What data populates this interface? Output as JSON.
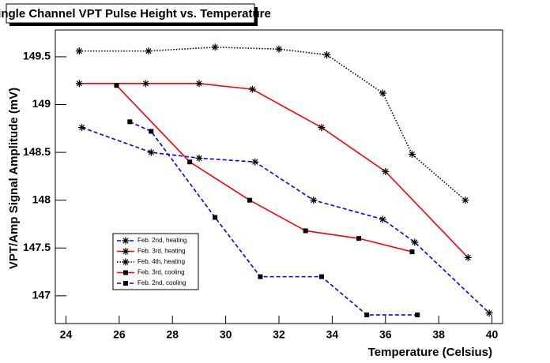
{
  "chart_data": {
    "type": "line",
    "title": "Single Channel VPT Pulse Height vs. Temperature",
    "x_label": "Temperature (Celsius)",
    "y_label": "VPT/Amp Signal Amplitude (mV)",
    "xlim": [
      23.6,
      40.4
    ],
    "xticks": [
      24,
      26,
      28,
      30,
      32,
      34,
      36,
      38,
      40
    ],
    "ylim": [
      146.71,
      149.78
    ],
    "yticks": [
      147,
      147.5,
      148,
      148.5,
      149,
      149.5
    ],
    "series": [
      {
        "name": "Feb. 2nd, heating",
        "color": "#0000ff",
        "dash": "dashed",
        "marker": "star",
        "x": [
          24.6,
          27.2,
          29.0,
          31.1,
          33.3,
          35.9,
          37.1,
          39.9
        ],
        "values": [
          148.76,
          148.5,
          148.44,
          148.4,
          148.0,
          147.8,
          147.56,
          146.82
        ]
      },
      {
        "name": "Feb. 3rd, heating",
        "color": "#ff0000",
        "dash": "solid",
        "marker": "star",
        "x": [
          24.5,
          27.0,
          29.0,
          31.0,
          33.6,
          36.0,
          39.1
        ],
        "values": [
          149.22,
          149.22,
          149.22,
          149.16,
          148.76,
          148.3,
          147.4
        ]
      },
      {
        "name": "Feb. 4th, heating",
        "color": "#000000",
        "dash": "dotted",
        "marker": "star",
        "x": [
          24.5,
          27.1,
          29.6,
          32.0,
          33.8,
          35.9,
          37.0,
          39.0
        ],
        "values": [
          149.56,
          149.56,
          149.6,
          149.58,
          149.52,
          149.12,
          148.48,
          148.0
        ]
      },
      {
        "name": "Feb. 3rd, cooling",
        "color": "#ff0000",
        "dash": "solid",
        "marker": "square",
        "x": [
          25.9,
          28.65,
          30.9,
          33.0,
          35.0,
          37.0
        ],
        "values": [
          149.2,
          148.4,
          148.0,
          147.68,
          147.6,
          147.46
        ]
      },
      {
        "name": "Feb. 2nd, cooling",
        "color": "#0000ff",
        "dash": "dashed",
        "marker": "square",
        "x": [
          26.4,
          27.2,
          29.6,
          31.3,
          33.6,
          35.3,
          37.2
        ],
        "values": [
          148.82,
          148.72,
          147.82,
          147.2,
          147.2,
          146.8,
          146.8
        ]
      }
    ]
  }
}
